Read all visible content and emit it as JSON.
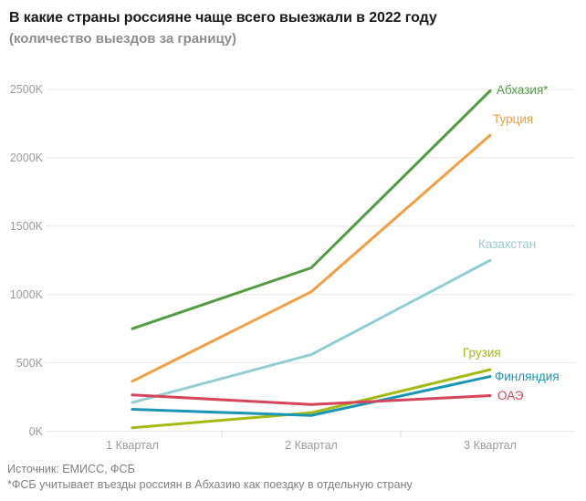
{
  "header": {
    "title": "В какие страны россияне чаще всего выезжали в 2022 году",
    "subtitle": "(количество выездов за границу)"
  },
  "footer": {
    "source": "Источник: ЕМИСС, ФСБ",
    "note": "*ФСБ учитывает въезды россиян в Абхазию как поездку в отдельную страну"
  },
  "chart_data": {
    "type": "line",
    "title": "В какие страны россияне чаще всего выезжали в 2022 году",
    "subtitle": "(количество выездов за границу)",
    "xlabel": "",
    "ylabel": "",
    "categories": [
      "1 Квартал",
      "2 Квартал",
      "3 Квартал"
    ],
    "series": [
      {
        "name": "Абхазия*",
        "color": "#529c42",
        "values": [
          750000,
          1195000,
          2490000
        ],
        "label_dx": 7,
        "label_dy": 0
      },
      {
        "name": "Турция",
        "color": "#f59d41",
        "values": [
          365000,
          1020000,
          2165000
        ],
        "label_dx": 3,
        "label_dy": -17
      },
      {
        "name": "Казахстан",
        "color": "#94cdd1",
        "values": [
          210000,
          560000,
          1250000
        ],
        "label_dx": -13,
        "label_dy": -17
      },
      {
        "name": "Грузия",
        "color": "#a3ba10",
        "values": [
          25000,
          135000,
          450000
        ],
        "label_dx": -30,
        "label_dy": -18
      },
      {
        "name": "Финляндия",
        "color": "#1996b4",
        "values": [
          160000,
          115000,
          400000
        ],
        "label_dx": 5,
        "label_dy": 0
      },
      {
        "name": "ОАЭ",
        "color": "#d5455c",
        "values": [
          265000,
          195000,
          260000
        ],
        "label_dx": 8,
        "label_dy": 0
      }
    ],
    "y_ticks": [
      {
        "value": 0,
        "label": "0K"
      },
      {
        "value": 500000,
        "label": "500K"
      },
      {
        "value": 1000000,
        "label": "1000K"
      },
      {
        "value": 1500000,
        "label": "1500K"
      },
      {
        "value": 2000000,
        "label": "2000K"
      },
      {
        "value": 2500000,
        "label": "2500K"
      }
    ],
    "ylim": [
      0,
      2500000
    ],
    "grid": "horizontal",
    "grid_color": "#e8e8e8",
    "tick_color": "#d8d8d8",
    "axis_label_color": "#9b9b9b",
    "legend_position": "line-end-labels"
  }
}
